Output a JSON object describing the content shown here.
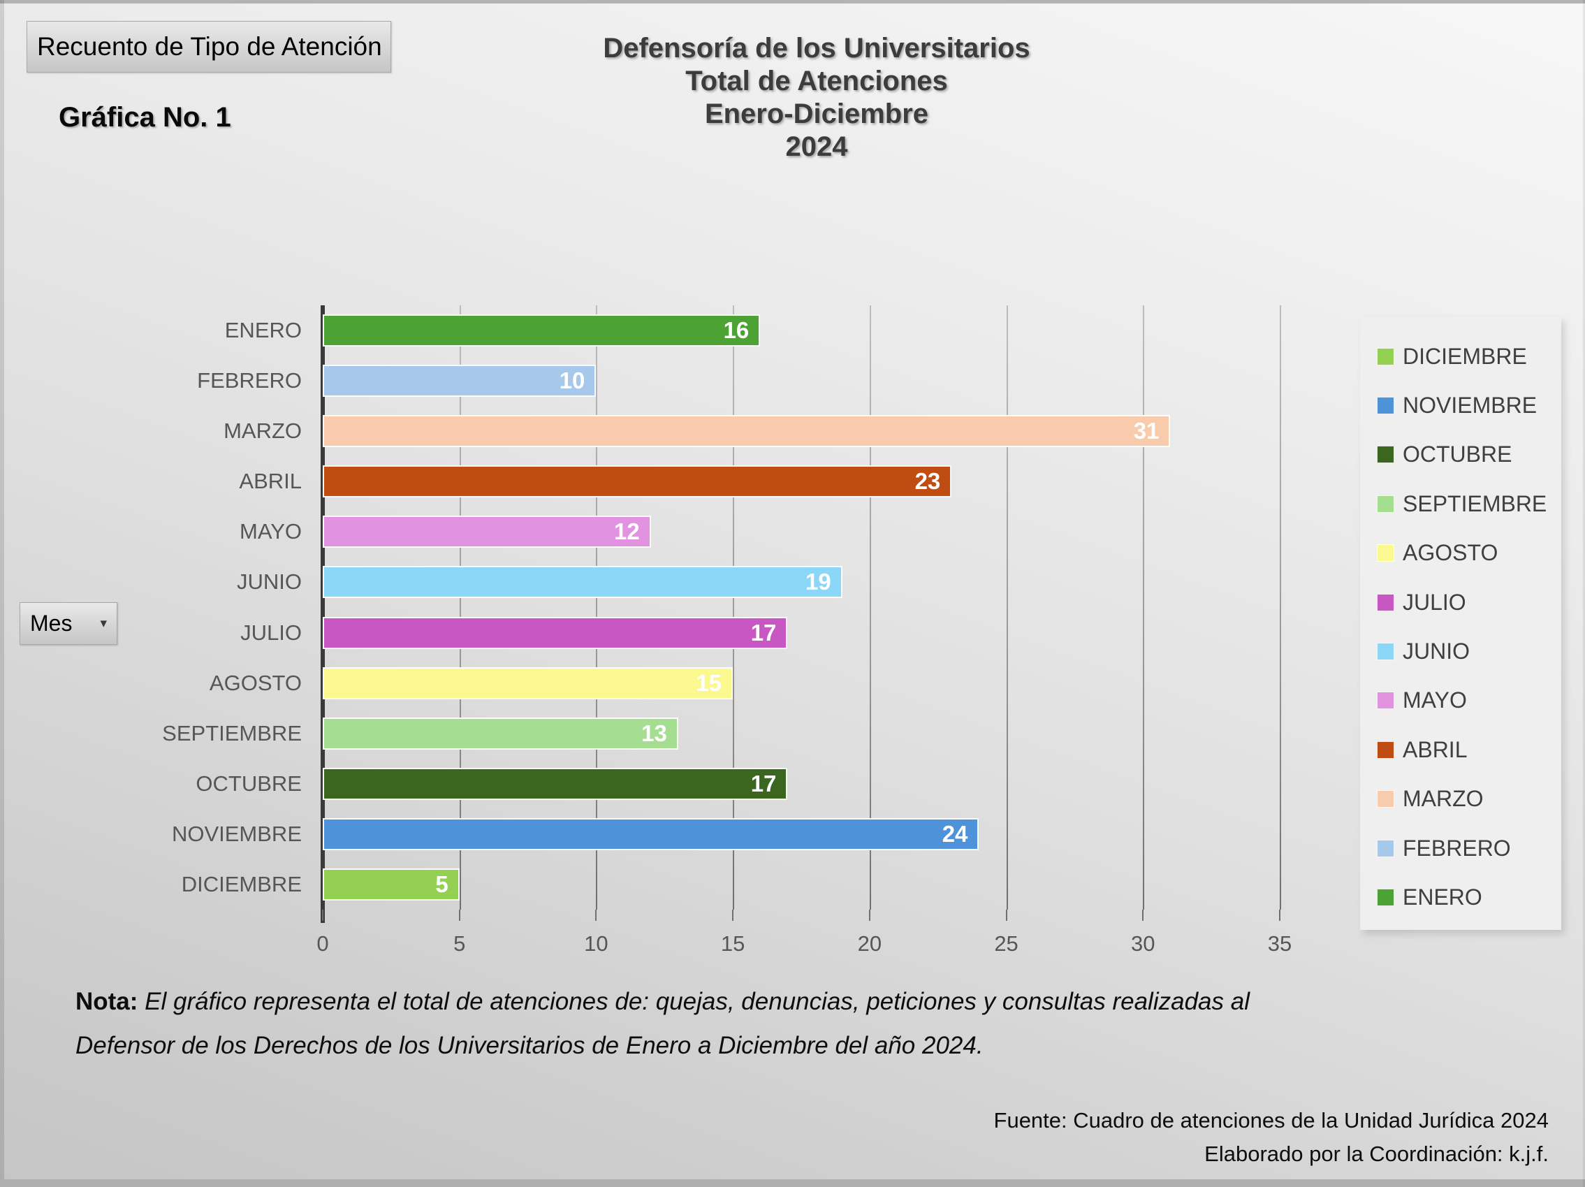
{
  "pivot_buttons": {
    "report_filter": "Recuento de Tipo de Atención",
    "axis_field": "Mes",
    "axis_field_arrow": "▾"
  },
  "labels": {
    "chart_number": "Gráfica No. 1"
  },
  "title": {
    "line1": "Defensoría de los Universitarios",
    "line2": "Total de Atenciones",
    "line3": "Enero-Diciembre",
    "line4": "2024"
  },
  "chart_data": {
    "type": "bar",
    "orientation": "horizontal",
    "title": "Defensoría de los Universitarios Total de Atenciones Enero-Diciembre 2024",
    "xlabel": "",
    "ylabel": "Mes",
    "categories": [
      "ENERO",
      "FEBRERO",
      "MARZO",
      "ABRIL",
      "MAYO",
      "JUNIO",
      "JULIO",
      "AGOSTO",
      "SEPTIEMBRE",
      "OCTUBRE",
      "NOVIEMBRE",
      "DICIEMBRE"
    ],
    "values": [
      16,
      10,
      31,
      23,
      12,
      19,
      17,
      15,
      13,
      17,
      24,
      5
    ],
    "bar_colors": [
      "#4CA232",
      "#A5C8EB",
      "#F8CBAD",
      "#BF4D12",
      "#E293DF",
      "#8BD7F7",
      "#C957C3",
      "#FAF88F",
      "#A6DE91",
      "#3A661F",
      "#4E93DA",
      "#94D052"
    ],
    "data_labels": "inside-end, white, bold",
    "xlim": [
      0,
      35
    ],
    "xticks": [
      0,
      5,
      10,
      15,
      20,
      25,
      30,
      35
    ],
    "grid": "vertical",
    "legend_position": "right",
    "legend": [
      {
        "label": "DICIEMBRE",
        "color": "#94D052"
      },
      {
        "label": "NOVIEMBRE",
        "color": "#4E93DA"
      },
      {
        "label": "OCTUBRE",
        "color": "#3A661F"
      },
      {
        "label": "SEPTIEMBRE",
        "color": "#A6DE91"
      },
      {
        "label": "AGOSTO",
        "color": "#FAF88F"
      },
      {
        "label": "JULIO",
        "color": "#C957C3"
      },
      {
        "label": "JUNIO",
        "color": "#8BD7F7"
      },
      {
        "label": "MAYO",
        "color": "#E293DF"
      },
      {
        "label": "ABRIL",
        "color": "#BF4D12"
      },
      {
        "label": "MARZO",
        "color": "#F8CBAD"
      },
      {
        "label": "FEBRERO",
        "color": "#A5C8EB"
      },
      {
        "label": "ENERO",
        "color": "#4CA232"
      }
    ]
  },
  "note": {
    "label": "Nota:",
    "line1_rest": " El gráfico representa el total de atenciones de: quejas, denuncias, peticiones y consultas realizadas al",
    "line2": "Defensor de los Derechos de los Universitarios de Enero a Diciembre del año 2024."
  },
  "source": {
    "line1": "Fuente: Cuadro de atenciones de la Unidad Jurídica 2024",
    "line2": "Elaborado por la Coordinación: k.j.f."
  },
  "colors": {
    "axis_line": "#3A3A3A",
    "gridline": "#8C8C8C",
    "tick_label": "#565656",
    "category_label": "#565656",
    "title_text": "#3C3C3C",
    "legend_bg": "#EFEFEF",
    "value_label": "#FFFFFF"
  }
}
